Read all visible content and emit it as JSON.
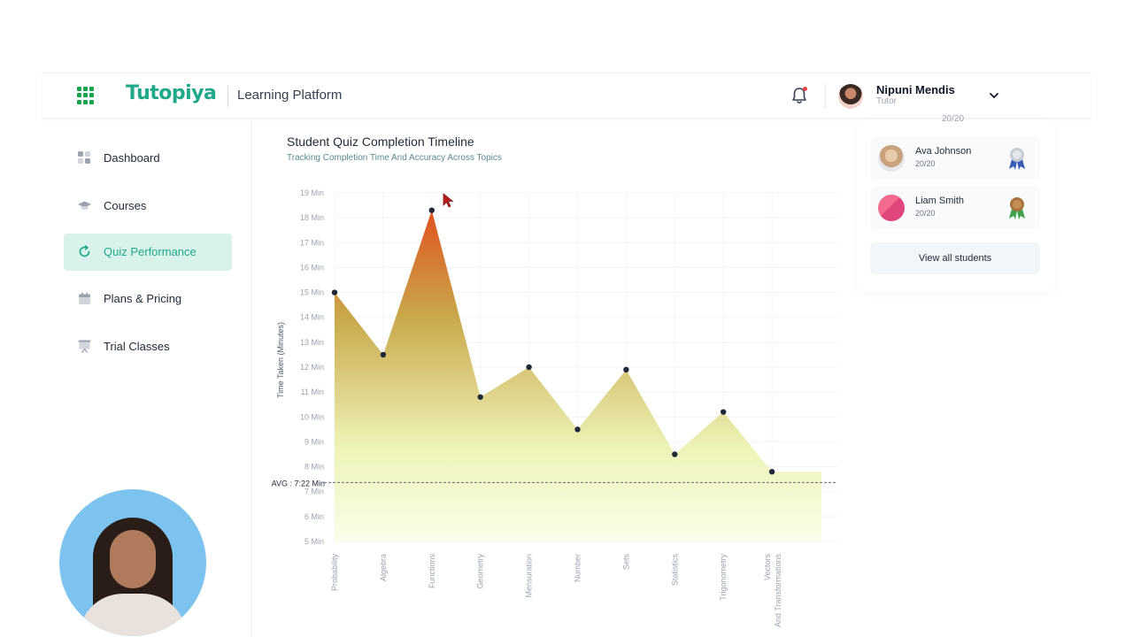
{
  "header": {
    "logo_text": "Tutopiya",
    "platform_label": "Learning Platform",
    "user_name": "Nipuni Mendis",
    "user_role": "Tutor"
  },
  "sidebar": {
    "items": [
      {
        "label": "Dashboard",
        "icon": "dashboard-icon"
      },
      {
        "label": "Courses",
        "icon": "graduation-cap-icon"
      },
      {
        "label": "Quiz Performance",
        "icon": "refresh-icon",
        "active": true
      },
      {
        "label": "Plans & Pricing",
        "icon": "calendar-icon"
      },
      {
        "label": "Trial Classes",
        "icon": "presentation-board-icon"
      }
    ]
  },
  "right_panel": {
    "partial_score": "20/20",
    "students": [
      {
        "name": "Ava Johnson",
        "score": "20/20",
        "medal": "silver-medal-icon"
      },
      {
        "name": "Liam Smith",
        "score": "20/20",
        "medal": "bronze-medal-icon"
      }
    ],
    "view_all_label": "View all students"
  },
  "colors": {
    "brand": "#1fa98a",
    "active_bg": "#d9f3ec",
    "area_top": "#e0521f",
    "area_mid": "#c9a84a",
    "area_bottom": "#eef4b8"
  },
  "chart_data": {
    "type": "area",
    "title": "Student Quiz Completion Timeline",
    "subtitle": "Tracking Completion Time And Accuracy Across Topics",
    "ylabel": "Time Taken (Minutes)",
    "xlabel": "",
    "ylim": [
      5,
      19
    ],
    "y_ticks": [
      "5 Min",
      "6 Min",
      "7 Min",
      "8 Min",
      "9 Min",
      "10 Min",
      "11 Min",
      "12 Min",
      "13 Min",
      "14 Min",
      "15 Min",
      "16 Min",
      "17 Min",
      "18 Min",
      "19 Min"
    ],
    "categories": [
      "Probability",
      "Algebra",
      "Functions",
      "Geometry",
      "Mensuration",
      "Number",
      "Sets",
      "Statistics",
      "Trigonometry",
      "Vectors And Transformations"
    ],
    "values": [
      15.0,
      12.5,
      18.3,
      10.8,
      12.0,
      9.5,
      11.9,
      8.5,
      10.2,
      7.8
    ],
    "average": {
      "label": "AVG : 7:22 Min",
      "value": 7.37
    },
    "grid": true,
    "legend": "none"
  }
}
